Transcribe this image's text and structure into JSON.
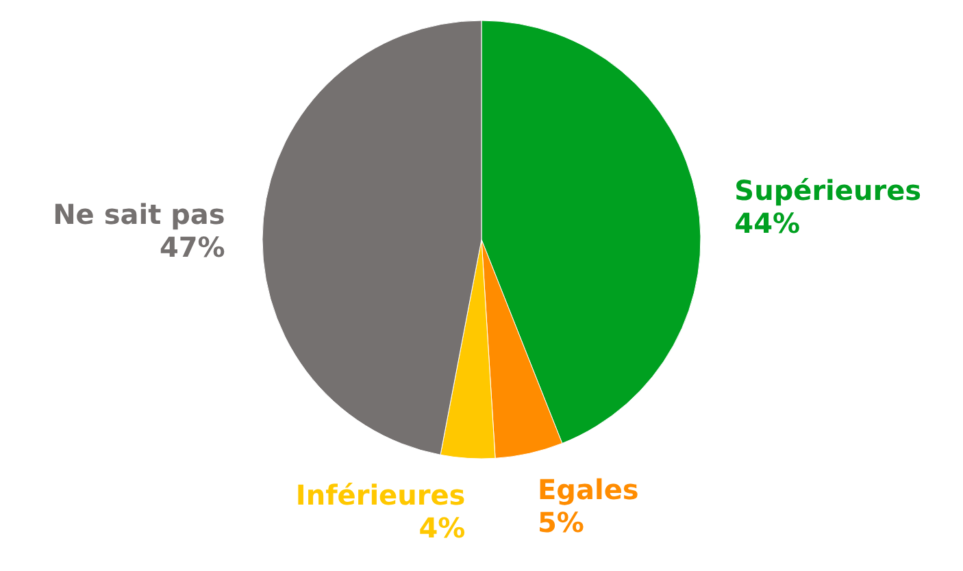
{
  "chart_data": {
    "type": "pie",
    "categories": [
      "Supérieures",
      "Egales",
      "Inférieures",
      "Ne sait pas"
    ],
    "values": [
      44,
      5,
      4,
      47
    ],
    "value_labels": [
      "44%",
      "5%",
      "4%",
      "47%"
    ],
    "colors": [
      "#00a020",
      "#ff8c00",
      "#ffc800",
      "#757170"
    ]
  }
}
